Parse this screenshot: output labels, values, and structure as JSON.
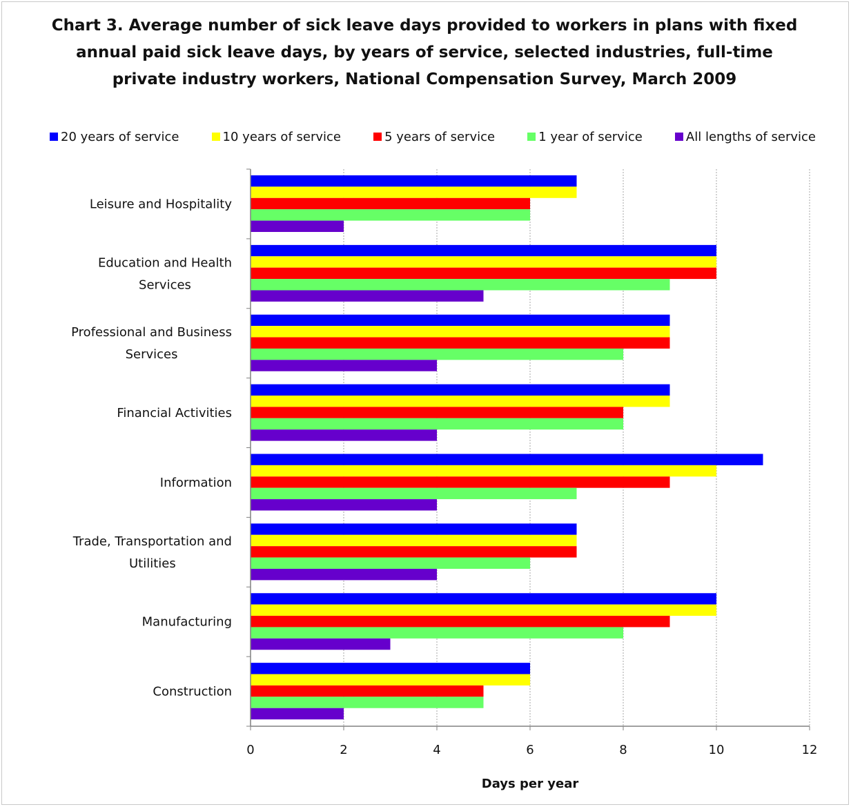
{
  "chart_data": {
    "type": "bar",
    "orientation": "horizontal",
    "title": "Chart 3. Average number of sick leave days provided to workers in plans with fixed annual paid sick leave days, by years of service, selected industries, full-time private industry workers, National Compensation Survey, March 2009",
    "title_lines": [
      "Chart 3. Average number of sick leave days provided to workers in plans with fixed",
      "annual paid sick leave days, by years of service, selected industries, full-time",
      "private industry workers, National Compensation Survey, March 2009"
    ],
    "xlabel": "Days per year",
    "ylabel": "",
    "xlim": [
      0,
      12
    ],
    "x_ticks": [
      0,
      2,
      4,
      6,
      8,
      10,
      12
    ],
    "grid": "vertical dotted",
    "legend_position": "top",
    "categories": [
      [
        "Leisure and Hospitality"
      ],
      [
        "Education and Health",
        "Services"
      ],
      [
        "Professional and Business",
        "Services"
      ],
      [
        "Financial Activities"
      ],
      [
        "Information"
      ],
      [
        "Trade, Transportation and",
        "Utilities"
      ],
      [
        "Manufacturing"
      ],
      [
        "Construction"
      ]
    ],
    "series": [
      {
        "name": "20 years of service",
        "color": "#0000ff",
        "values": [
          7,
          10,
          9,
          9,
          11,
          7,
          10,
          6
        ]
      },
      {
        "name": "10 years of service",
        "color": "#ffff00",
        "values": [
          7,
          10,
          9,
          9,
          10,
          7,
          10,
          6
        ]
      },
      {
        "name": "5 years of service",
        "color": "#ff0000",
        "values": [
          6,
          10,
          9,
          8,
          9,
          7,
          9,
          5
        ]
      },
      {
        "name": "1 year of service",
        "color": "#66ff66",
        "values": [
          6,
          9,
          8,
          8,
          7,
          6,
          8,
          5
        ]
      },
      {
        "name": "All lengths of service",
        "color": "#6600cc",
        "values": [
          2,
          5,
          4,
          4,
          4,
          4,
          3,
          2
        ]
      }
    ]
  }
}
